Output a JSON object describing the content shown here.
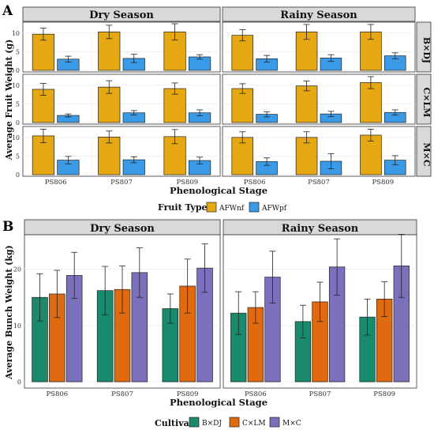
{
  "chart_data": [
    {
      "type": "bar",
      "panel_letter": "A",
      "facet_cols": [
        "Dry Season",
        "Rainy Season"
      ],
      "facet_rows": [
        "B×DJ",
        "C×LM",
        "M×C"
      ],
      "categories": [
        "PS806",
        "PS807",
        "PS809"
      ],
      "xlabel": "Phenological Stage",
      "ylabel": "Average Fruit Weight (g)",
      "ylim": [
        0,
        12.5
      ],
      "yticks": [
        0,
        5,
        10
      ],
      "legend_title": "Fruit Type",
      "legend_position": "bottom",
      "grid": true,
      "series": [
        {
          "name": "AFWnf",
          "color": "#e5a712"
        },
        {
          "name": "AFWpf",
          "color": "#3a9ae6"
        }
      ],
      "panels": [
        {
          "season": "Dry Season",
          "cultivar": "B×DJ",
          "AFWnf": {
            "values": [
              9.7,
              10.3,
              10.3
            ],
            "err": [
              1.6,
              1.8,
              2.2
            ]
          },
          "AFWpf": {
            "values": [
              3.0,
              3.2,
              3.6
            ],
            "err": [
              0.8,
              1.1,
              0.6
            ]
          }
        },
        {
          "season": "Rainy Season",
          "cultivar": "B×DJ",
          "AFWnf": {
            "values": [
              9.4,
              10.3,
              10.3
            ],
            "err": [
              1.5,
              2.0,
              2.0
            ]
          },
          "AFWpf": {
            "values": [
              3.1,
              3.3,
              3.9
            ],
            "err": [
              0.9,
              0.9,
              0.8
            ]
          }
        },
        {
          "season": "Dry Season",
          "cultivar": "C×LM",
          "AFWnf": {
            "values": [
              8.9,
              9.5,
              9.1
            ],
            "err": [
              1.6,
              1.7,
              1.5
            ]
          },
          "AFWpf": {
            "values": [
              1.9,
              2.6,
              2.6
            ],
            "err": [
              0.4,
              0.6,
              0.8
            ]
          }
        },
        {
          "season": "Rainy Season",
          "cultivar": "C×LM",
          "AFWnf": {
            "values": [
              9.1,
              9.8,
              10.7
            ],
            "err": [
              1.3,
              1.3,
              1.6
            ]
          },
          "AFWpf": {
            "values": [
              2.2,
              2.3,
              2.7
            ],
            "err": [
              0.7,
              0.7,
              0.7
            ]
          }
        },
        {
          "season": "Dry Season",
          "cultivar": "M×C",
          "AFWnf": {
            "values": [
              10.4,
              10.1,
              10.2
            ],
            "err": [
              1.8,
              1.6,
              1.9
            ]
          },
          "AFWpf": {
            "values": [
              3.9,
              4.0,
              3.8
            ],
            "err": [
              1.0,
              0.8,
              0.9
            ]
          }
        },
        {
          "season": "Rainy Season",
          "cultivar": "M×C",
          "AFWnf": {
            "values": [
              10.0,
              10.0,
              10.6
            ],
            "err": [
              1.5,
              1.5,
              1.6
            ]
          },
          "AFWpf": {
            "values": [
              3.5,
              3.6,
              3.9
            ],
            "err": [
              1.0,
              2.0,
              1.2
            ]
          }
        }
      ]
    },
    {
      "type": "bar",
      "panel_letter": "B",
      "facet_cols": [
        "Dry Season",
        "Rainy Season"
      ],
      "categories": [
        "PS806",
        "PS807",
        "PS809"
      ],
      "xlabel": "Phenological Stage",
      "ylabel": "Average Bunch Weight (kg)",
      "ylim": [
        0,
        25
      ],
      "yticks": [
        0,
        10,
        20
      ],
      "legend_title": "Cultivar",
      "legend_position": "bottom",
      "grid": true,
      "series": [
        {
          "name": "B×DJ",
          "color": "#1a8a6c"
        },
        {
          "name": "C×LM",
          "color": "#e06a10"
        },
        {
          "name": "M×C",
          "color": "#7a70bc"
        }
      ],
      "panels": [
        {
          "season": "Dry Season",
          "B×DJ": {
            "values": [
              15.0,
              16.2,
              13.0
            ],
            "err": [
              4.2,
              4.3,
              2.6
            ]
          },
          "C×LM": {
            "values": [
              15.6,
              16.4,
              17.0
            ],
            "err": [
              4.2,
              4.2,
              4.8
            ]
          },
          "M×C": {
            "values": [
              18.9,
              19.4,
              20.2
            ],
            "err": [
              4.1,
              4.4,
              4.3
            ]
          }
        },
        {
          "season": "Rainy Season",
          "B×DJ": {
            "values": [
              12.2,
              10.7,
              11.5
            ],
            "err": [
              3.8,
              2.9,
              3.2
            ]
          },
          "C×LM": {
            "values": [
              13.2,
              14.2,
              14.7
            ],
            "err": [
              2.8,
              3.5,
              3.1
            ]
          },
          "M×C": {
            "values": [
              18.6,
              20.4,
              20.6
            ],
            "err": [
              4.6,
              5.0,
              5.6
            ]
          }
        }
      ]
    }
  ]
}
